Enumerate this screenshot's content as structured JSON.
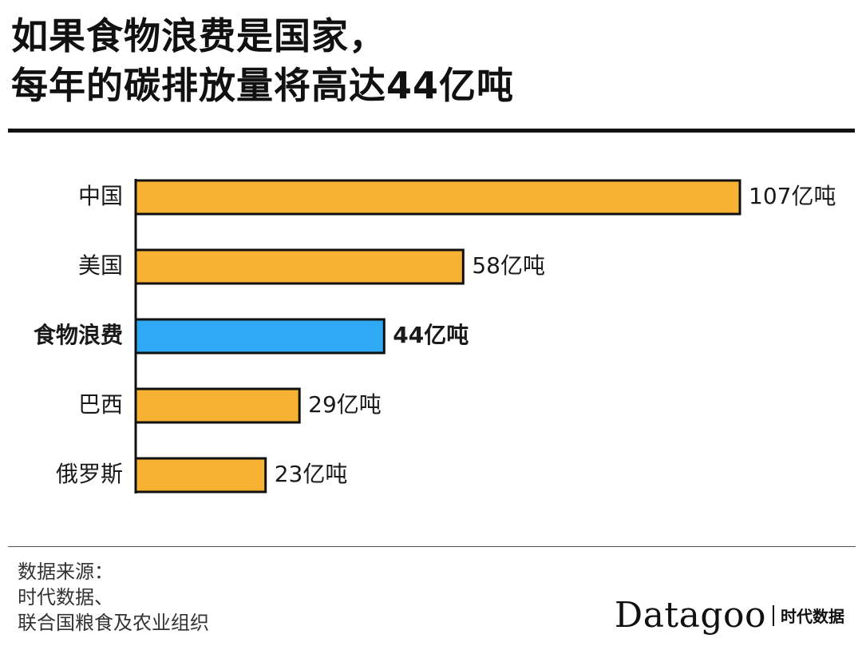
{
  "title": {
    "line1": "如果食物浪费是国家，",
    "line2": "每年的碳排放量将高达44亿吨"
  },
  "chart_data": {
    "type": "bar",
    "orientation": "horizontal",
    "categories": [
      "中国",
      "美国",
      "食物浪费",
      "巴西",
      "俄罗斯"
    ],
    "values": [
      107,
      58,
      44,
      29,
      23
    ],
    "value_labels": [
      "107亿吨",
      "58亿吨",
      "44亿吨",
      "29亿吨",
      "23亿吨"
    ],
    "highlight_index": 2,
    "xlim": [
      0,
      107
    ],
    "grid": false,
    "colors": {
      "bar": "#F7B233",
      "highlight": "#2FA9F4",
      "outline": "#111111"
    }
  },
  "source": {
    "label": "数据来源：",
    "line1": "时代数据、",
    "line2": "联合国粮食及农业组织"
  },
  "brand": {
    "name": "Datagoo",
    "sub": "时代数据"
  }
}
